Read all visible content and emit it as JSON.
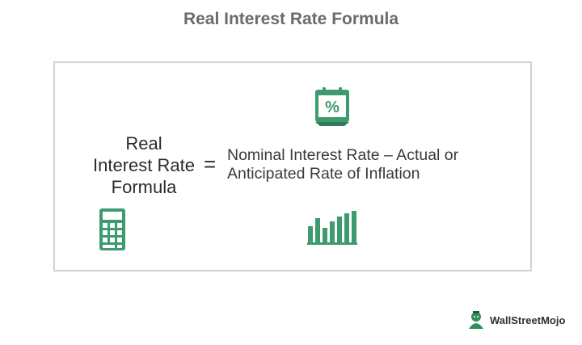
{
  "title": "Real Interest Rate Formula",
  "formula": {
    "term_lines": [
      "Real",
      "Interest Rate",
      "Formula"
    ],
    "operator": "=",
    "definition_lines": [
      "Nominal Interest Rate – Actual or",
      "Anticipated Rate of Inflation"
    ]
  },
  "icons": {
    "percent_calendar": {
      "symbol": "%",
      "name": "percent-calendar-icon"
    },
    "calculator": {
      "name": "calculator-icon"
    },
    "bar_chart": {
      "name": "bar-chart-icon"
    }
  },
  "brand": {
    "logo_text": "WallStreetMojo"
  },
  "colors": {
    "title": "#6b6b6b",
    "text": "#2b2b2b",
    "icon_green": "#3d9b6f",
    "border": "#d2d2d2"
  }
}
